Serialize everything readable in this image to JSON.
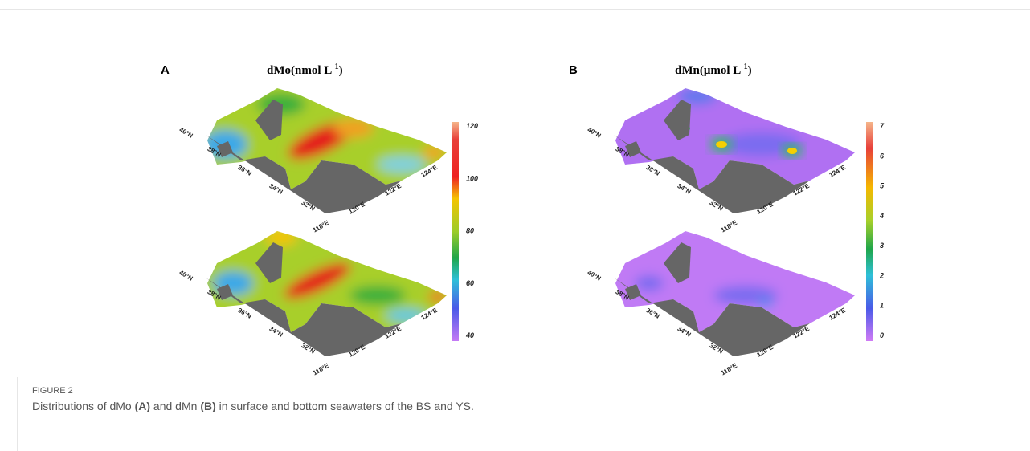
{
  "figure": {
    "panels": [
      {
        "label": "A",
        "title": {
          "text": "dMo(nmol L",
          "sup": "-1",
          "close": ")"
        },
        "colorbar_ticks": [
          "120",
          "100",
          "80",
          "60",
          "40"
        ],
        "maps": [
          {
            "lat_labels": [
              "40°N",
              "38°N",
              "36°N",
              "34°N",
              "32°N"
            ],
            "lon_labels": [
              "118°E",
              "120°E",
              "122°E",
              "124°E"
            ]
          },
          {
            "lat_labels": [
              "40°N",
              "38°N",
              "36°N",
              "34°N",
              "32°N"
            ],
            "lon_labels": [
              "118°E",
              "120°E",
              "122°E",
              "124°E"
            ]
          }
        ]
      },
      {
        "label": "B",
        "title": {
          "text": "dMn(μmol L",
          "sup": "-1",
          "close": ")"
        },
        "colorbar_ticks": [
          "7",
          "6",
          "5",
          "4",
          "3",
          "2",
          "1",
          "0"
        ],
        "maps": [
          {
            "lat_labels": [
              "40°N",
              "38°N",
              "36°N",
              "34°N",
              "32°N"
            ],
            "lon_labels": [
              "118°E",
              "120°E",
              "122°E",
              "124°E"
            ]
          },
          {
            "lat_labels": [
              "40°N",
              "38°N",
              "36°N",
              "34°N",
              "32°N"
            ],
            "lon_labels": [
              "118°E",
              "120°E",
              "122°E",
              "124°E"
            ]
          }
        ]
      }
    ]
  },
  "caption": {
    "label": "FIGURE 2",
    "parts": [
      "Distributions of dMo ",
      "(A)",
      " and dMn ",
      "(B)",
      " in surface and bottom seawaters of the BS and YS."
    ]
  }
}
